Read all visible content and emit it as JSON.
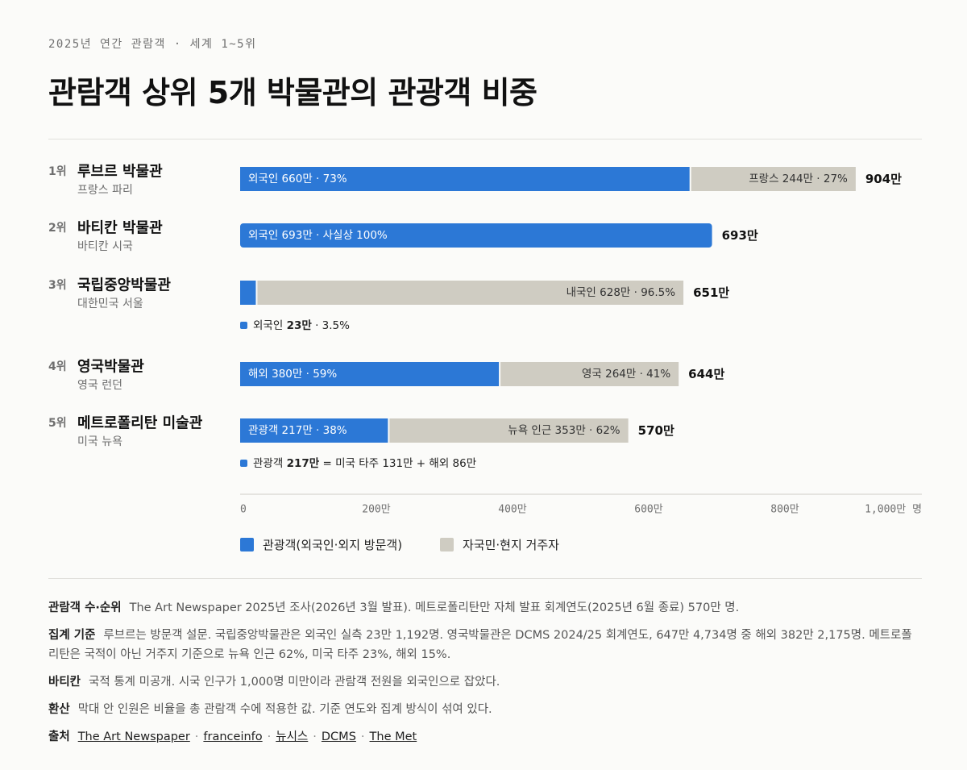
{
  "header": {
    "kicker": "2025년 연간 관람객 · 세계 1~5위",
    "title": "관람객 상위 5개 박물관의 관광객 비중"
  },
  "colors": {
    "tourist": "#2c78d6",
    "local": "#cfccc2",
    "axis": "#cfcdc7",
    "text": "#111111",
    "muted": "#6f6f6f"
  },
  "chart_data": {
    "type": "bar",
    "orientation": "horizontal",
    "stacked": true,
    "unit": "만 명",
    "xlim": [
      0,
      1000
    ],
    "x_ticks": [
      {
        "value": 0,
        "label": "0"
      },
      {
        "value": 200,
        "label": "200만"
      },
      {
        "value": 400,
        "label": "400만"
      },
      {
        "value": 600,
        "label": "600만"
      },
      {
        "value": 800,
        "label": "800만"
      },
      {
        "value": 1000,
        "label": "1,000만 명"
      }
    ],
    "legend": {
      "placement": "bottom-left",
      "tourist": "관광객(외국인·외지 방문객)",
      "local": "자국민·현지 거주자"
    },
    "rows": [
      {
        "rank": "1위",
        "name": "루브르 박물관",
        "location": "프랑스 파리",
        "tourist": 660,
        "local": 244,
        "total": 904,
        "total_label": "904만",
        "tourist_label": "외국인 660만 · 73%",
        "local_label": "프랑스 244만 · 27%",
        "note": null
      },
      {
        "rank": "2위",
        "name": "바티칸 박물관",
        "location": "바티칸 시국",
        "tourist": 693,
        "local": 0,
        "total": 693,
        "total_label": "693만",
        "tourist_label": "외국인 693만 · 사실상 100%",
        "local_label": "",
        "note": null
      },
      {
        "rank": "3위",
        "name": "국립중앙박물관",
        "location": "대한민국 서울",
        "tourist": 23,
        "local": 628,
        "total": 651,
        "total_label": "651만",
        "tourist_label": "",
        "local_label": "내국인 628만 · 96.5%",
        "note": {
          "before": "외국인 ",
          "bold": "23만",
          "after": " · 3.5%"
        }
      },
      {
        "rank": "4위",
        "name": "영국박물관",
        "location": "영국 런던",
        "tourist": 380,
        "local": 264,
        "total": 644,
        "total_label": "644만",
        "tourist_label": "해외 380만 · 59%",
        "local_label": "영국 264만 · 41%",
        "note": null
      },
      {
        "rank": "5위",
        "name": "메트로폴리탄 미술관",
        "location": "미국 뉴욕",
        "tourist": 217,
        "local": 353,
        "total": 570,
        "total_label": "570만",
        "tourist_label": "관광객 217만 · 38%",
        "local_label": "뉴욕 인근 353만 · 62%",
        "note": {
          "before": "관광객 ",
          "bold": "217만",
          "after": " = 미국 타주 131만 + 해외 86만"
        }
      }
    ]
  },
  "notes": [
    {
      "label": "관람객 수·순위",
      "text": "The Art Newspaper 2025년 조사(2026년 3월 발표). 메트로폴리탄만 자체 발표 회계연도(2025년 6월 종료) 570만 명."
    },
    {
      "label": "집계 기준",
      "text": "루브르는 방문객 설문. 국립중앙박물관은 외국인 실측 23만 1,192명. 영국박물관은 DCMS 2024/25 회계연도, 647만 4,734명 중 해외 382만 2,175명. 메트로폴리탄은 국적이 아닌 거주지 기준으로 뉴욕 인근 62%, 미국 타주 23%, 해외 15%."
    },
    {
      "label": "바티칸",
      "text": "국적 통계 미공개. 시국 인구가 1,000명 미만이라 관람객 전원을 외국인으로 잡았다."
    },
    {
      "label": "환산",
      "text": "막대 안 인원은 비율을 총 관람객 수에 적용한 값. 기준 연도와 집계 방식이 섞여 있다."
    }
  ],
  "sources": {
    "label": "출처",
    "links": [
      "The Art Newspaper",
      "franceinfo",
      "뉴시스",
      "DCMS",
      "The Met"
    ]
  }
}
